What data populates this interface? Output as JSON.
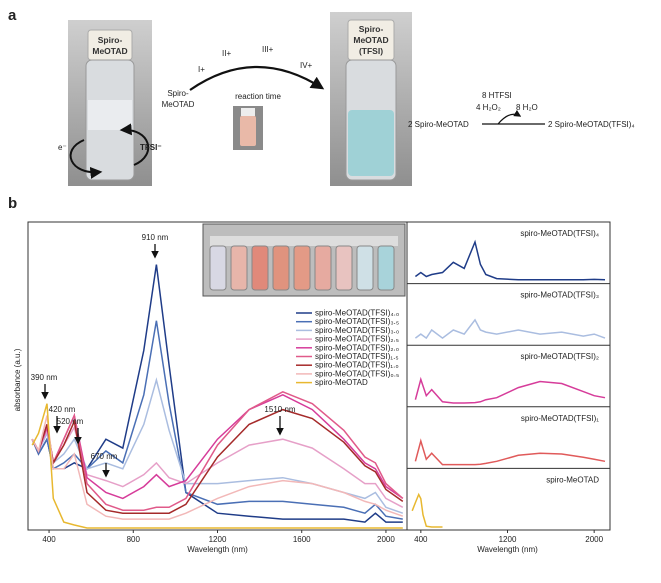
{
  "panel_a": {
    "label": "a",
    "left_vial": {
      "cap_line1": "Spiro-",
      "cap_line2": "MeOTAD",
      "electron": "e⁻",
      "anion": "TFSI⁻"
    },
    "reaction": {
      "reactant_line1": "Spiro-",
      "reactant_line2": "MeOTAD",
      "states": [
        "I+",
        "II+",
        "III+",
        "IV+"
      ],
      "arrow_label": "reaction time"
    },
    "right_vial": {
      "cap_line1": "Spiro-",
      "cap_line2": "MeOTAD",
      "cap_line3": "(TFSI)"
    },
    "equation": {
      "reagent": "8 HTFSI",
      "oxidant": "4 H₂O₂",
      "byproduct": "8 H₂O",
      "reactant": "2 Spiro-MeOTAD",
      "product": "2 Spiro-MeOTAD(TFSI)₄"
    }
  },
  "panel_b": {
    "label": "b"
  },
  "chart_data": [
    {
      "type": "line",
      "xlabel": "Wavelength (nm)",
      "ylabel": "absorbance (a.u.)",
      "xlim": [
        300,
        2100
      ],
      "xticks": [
        400,
        800,
        1200,
        1600,
        2000
      ],
      "ylim": [
        0,
        1
      ],
      "x": [
        320,
        350,
        390,
        420,
        470,
        520,
        580,
        670,
        750,
        850,
        910,
        970,
        1050,
        1200,
        1350,
        1510,
        1650,
        1800,
        1900,
        1950,
        2000,
        2080
      ],
      "annotations": [
        "390 nm",
        "420 nm",
        "520 nm",
        "670 nm",
        "910 nm",
        "1510 nm"
      ],
      "series": [
        {
          "name": "spiro-MeOTAD(TFSI)₄.₀",
          "color": "#1f3c88",
          "values": [
            0.3,
            0.25,
            0.3,
            0.2,
            0.2,
            0.22,
            0.2,
            0.3,
            0.27,
            0.6,
            0.89,
            0.55,
            0.12,
            0.05,
            0.04,
            0.03,
            0.03,
            0.03,
            0.02,
            0.05,
            0.02,
            0.02
          ]
        },
        {
          "name": "spiro-MeOTAD(TFSI)₃.₅",
          "color": "#4a6fb5",
          "values": [
            0.3,
            0.25,
            0.3,
            0.2,
            0.22,
            0.25,
            0.2,
            0.26,
            0.22,
            0.45,
            0.7,
            0.42,
            0.12,
            0.08,
            0.09,
            0.09,
            0.08,
            0.07,
            0.05,
            0.08,
            0.04,
            0.03
          ]
        },
        {
          "name": "spiro-MeOTAD(TFSI)₃.₀",
          "color": "#aabde0",
          "values": [
            0.3,
            0.26,
            0.32,
            0.22,
            0.25,
            0.3,
            0.2,
            0.22,
            0.2,
            0.35,
            0.5,
            0.33,
            0.15,
            0.15,
            0.16,
            0.17,
            0.15,
            0.12,
            0.1,
            0.12,
            0.07,
            0.05
          ]
        },
        {
          "name": "spiro-MeOTAD(TFSI)₂.₅",
          "color": "#e6a0c8",
          "values": [
            0.3,
            0.26,
            0.33,
            0.22,
            0.28,
            0.34,
            0.18,
            0.16,
            0.14,
            0.18,
            0.22,
            0.17,
            0.15,
            0.22,
            0.28,
            0.3,
            0.27,
            0.2,
            0.15,
            0.15,
            0.1,
            0.07
          ]
        },
        {
          "name": "spiro-MeOTAD(TFSI)₂.₀",
          "color": "#d63c9a",
          "values": [
            0.3,
            0.26,
            0.34,
            0.22,
            0.3,
            0.38,
            0.17,
            0.12,
            0.1,
            0.14,
            0.18,
            0.14,
            0.16,
            0.3,
            0.4,
            0.45,
            0.4,
            0.3,
            0.22,
            0.2,
            0.14,
            0.1
          ]
        },
        {
          "name": "spiro-MeOTAD(TFSI)₁.₅",
          "color": "#e05a8a",
          "values": [
            0.3,
            0.26,
            0.35,
            0.22,
            0.3,
            0.38,
            0.15,
            0.08,
            0.06,
            0.06,
            0.07,
            0.07,
            0.1,
            0.28,
            0.4,
            0.46,
            0.42,
            0.33,
            0.24,
            0.22,
            0.15,
            0.1
          ]
        },
        {
          "name": "spiro-MeOTAD(TFSI)₁.₀",
          "color": "#a52a2a",
          "values": [
            0.3,
            0.26,
            0.35,
            0.22,
            0.28,
            0.36,
            0.12,
            0.06,
            0.05,
            0.05,
            0.05,
            0.05,
            0.08,
            0.24,
            0.35,
            0.4,
            0.37,
            0.29,
            0.21,
            0.19,
            0.13,
            0.09
          ]
        },
        {
          "name": "spiro-MeOTAD(TFSI)₀.₅",
          "color": "#f2b8b8",
          "values": [
            0.3,
            0.26,
            0.38,
            0.2,
            0.2,
            0.25,
            0.08,
            0.04,
            0.03,
            0.03,
            0.03,
            0.03,
            0.05,
            0.1,
            0.14,
            0.16,
            0.15,
            0.12,
            0.09,
            0.08,
            0.06,
            0.04
          ]
        },
        {
          "name": "spiro-MeOTAD",
          "color": "#e8b830",
          "values": [
            0.28,
            0.32,
            0.42,
            0.1,
            0.02,
            0.01,
            0,
            0,
            0,
            0,
            0,
            0,
            0,
            0,
            0,
            0,
            0,
            0,
            0,
            0,
            0,
            0
          ]
        }
      ]
    },
    {
      "type": "line",
      "title": "spiro-MeOTAD(TFSI)₄",
      "xlim": [
        300,
        2100
      ],
      "ylim": [
        0,
        1
      ],
      "color": "#1f3c88",
      "x": [
        350,
        400,
        450,
        500,
        600,
        700,
        800,
        900,
        950,
        1000,
        1100,
        1300,
        1500,
        1700,
        1900,
        2000,
        2100
      ],
      "values": [
        0.1,
        0.2,
        0.1,
        0.15,
        0.2,
        0.45,
        0.3,
        0.95,
        0.4,
        0.15,
        0.05,
        0.02,
        0.02,
        0.02,
        0.02,
        0.03,
        0.02
      ]
    },
    {
      "type": "line",
      "title": "spiro-MeOTAD(TFSI)₃",
      "xlim": [
        300,
        2100
      ],
      "ylim": [
        0,
        1
      ],
      "color": "#aabde0",
      "x": [
        350,
        400,
        450,
        500,
        600,
        700,
        800,
        900,
        950,
        1000,
        1100,
        1300,
        1500,
        1700,
        1900,
        2000,
        2100
      ],
      "values": [
        0.1,
        0.2,
        0.1,
        0.3,
        0.1,
        0.3,
        0.2,
        0.55,
        0.3,
        0.25,
        0.2,
        0.3,
        0.2,
        0.25,
        0.15,
        0.2,
        0.1
      ]
    },
    {
      "type": "line",
      "title": "spiro-MeOTAD(TFSI)₂",
      "xlim": [
        300,
        2100
      ],
      "ylim": [
        0,
        1
      ],
      "color": "#d63c9a",
      "x": [
        350,
        400,
        450,
        500,
        600,
        700,
        800,
        900,
        950,
        1000,
        1100,
        1300,
        1500,
        1700,
        1900,
        2000,
        2100
      ],
      "values": [
        0.1,
        0.6,
        0.2,
        0.35,
        0.05,
        0.02,
        0.02,
        0.03,
        0.05,
        0.1,
        0.15,
        0.4,
        0.55,
        0.5,
        0.3,
        0.2,
        0.15
      ]
    },
    {
      "type": "line",
      "title": "spiro-MeOTAD(TFSI)₁",
      "xlim": [
        300,
        2100
      ],
      "ylim": [
        0,
        1
      ],
      "color": "#e05a5a",
      "x": [
        350,
        400,
        450,
        500,
        600,
        700,
        800,
        900,
        950,
        1000,
        1100,
        1300,
        1500,
        1700,
        1900,
        2000,
        2100
      ],
      "values": [
        0.1,
        0.6,
        0.15,
        0.3,
        0.02,
        0.02,
        0.02,
        0.02,
        0.03,
        0.05,
        0.1,
        0.25,
        0.3,
        0.28,
        0.2,
        0.15,
        0.1
      ]
    },
    {
      "type": "line",
      "title": "spiro-MeOTAD",
      "xlabel": "Wavelength (nm)",
      "xlim": [
        300,
        2100
      ],
      "xticks": [
        400,
        1200,
        2000
      ],
      "ylim": [
        0,
        1
      ],
      "color": "#e8b830",
      "x": [
        320,
        350,
        380,
        400,
        420,
        450,
        500,
        600
      ],
      "values": [
        0.4,
        0.6,
        0.8,
        0.7,
        0.3,
        0.02,
        0,
        0
      ]
    }
  ]
}
